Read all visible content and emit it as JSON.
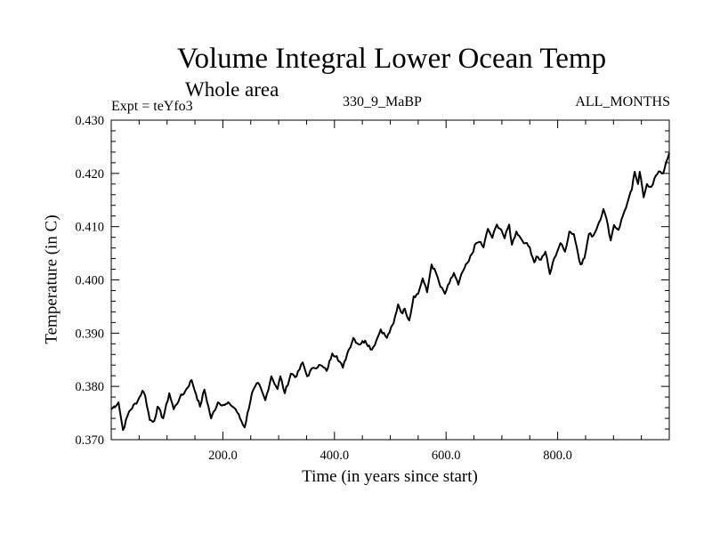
{
  "chart_data": {
    "type": "line",
    "title": "Volume Integral Lower Ocean Temp",
    "subtitle": "Whole area",
    "annotations": {
      "left": "Expt = teYfo3",
      "center": "330_9_MaBP",
      "right": "ALL_MONTHS"
    },
    "xlabel": "Time (in years since start)",
    "ylabel": "Temperature (in C)",
    "xlim": [
      0,
      1000
    ],
    "ylim": [
      0.37,
      0.43
    ],
    "xticks": [
      200,
      400,
      600,
      800
    ],
    "xtick_labels": [
      "200.0",
      "400.0",
      "600.0",
      "800.0"
    ],
    "xminor_step": 50,
    "yticks": [
      0.37,
      0.38,
      0.39,
      0.4,
      0.41,
      0.42,
      0.43
    ],
    "ytick_labels": [
      "0.370",
      "0.380",
      "0.390",
      "0.400",
      "0.410",
      "0.420",
      "0.430"
    ],
    "yminor_step": 0.002,
    "grid": false,
    "legend": "none",
    "line_color": "#000000",
    "series": [
      {
        "name": "Volume Integral Lower Ocean Temp",
        "x": [
          0,
          13,
          21,
          32,
          48,
          56,
          61,
          69,
          77,
          83,
          93,
          104,
          112,
          123,
          132,
          144,
          152,
          159,
          167,
          179,
          191,
          203,
          212,
          223,
          239,
          252,
          263,
          276,
          287,
          298,
          303,
          311,
          322,
          332,
          343,
          351,
          362,
          375,
          386,
          396,
          404,
          415,
          423,
          434,
          443,
          455,
          467,
          475,
          483,
          494,
          506,
          514,
          522,
          526,
          534,
          542,
          550,
          558,
          566,
          574,
          582,
          590,
          598,
          606,
          614,
          622,
          630,
          641,
          654,
          662,
          667,
          675,
          683,
          691,
          699,
          705,
          713,
          718,
          726,
          734,
          742,
          750,
          758,
          762,
          770,
          778,
          786,
          794,
          805,
          813,
          821,
          829,
          841,
          848,
          856,
          864,
          874,
          882,
          890,
          895,
          901,
          909,
          917,
          925,
          933,
          938,
          944,
          947,
          954,
          960,
          968,
          976,
          984,
          989,
          994,
          1000
        ],
        "y": [
          0.3757,
          0.377,
          0.3718,
          0.3753,
          0.3774,
          0.3792,
          0.3782,
          0.3737,
          0.3735,
          0.3762,
          0.374,
          0.3787,
          0.3757,
          0.3779,
          0.379,
          0.3812,
          0.3785,
          0.3762,
          0.3794,
          0.374,
          0.377,
          0.3765,
          0.3768,
          0.3757,
          0.3723,
          0.3787,
          0.3807,
          0.3774,
          0.3819,
          0.3795,
          0.3819,
          0.3787,
          0.3824,
          0.3819,
          0.3845,
          0.3819,
          0.3835,
          0.384,
          0.3829,
          0.3862,
          0.3857,
          0.3835,
          0.3862,
          0.3891,
          0.3879,
          0.3886,
          0.3869,
          0.3886,
          0.3907,
          0.3891,
          0.3919,
          0.3954,
          0.3937,
          0.3946,
          0.3924,
          0.3969,
          0.3974,
          0.4003,
          0.3977,
          0.4029,
          0.4013,
          0.3987,
          0.3974,
          0.3994,
          0.4013,
          0.3991,
          0.4016,
          0.4036,
          0.4069,
          0.4071,
          0.4061,
          0.4096,
          0.4079,
          0.4104,
          0.4094,
          0.4078,
          0.4104,
          0.4066,
          0.4091,
          0.4078,
          0.4069,
          0.4061,
          0.4033,
          0.4044,
          0.4038,
          0.4053,
          0.4011,
          0.4041,
          0.4069,
          0.4053,
          0.4091,
          0.4086,
          0.4029,
          0.4041,
          0.4086,
          0.4083,
          0.4108,
          0.4133,
          0.4103,
          0.4074,
          0.4103,
          0.4094,
          0.4121,
          0.4145,
          0.417,
          0.4203,
          0.418,
          0.4203,
          0.4155,
          0.418,
          0.4175,
          0.4196,
          0.4203,
          0.42,
          0.422,
          0.4238
        ]
      }
    ]
  }
}
